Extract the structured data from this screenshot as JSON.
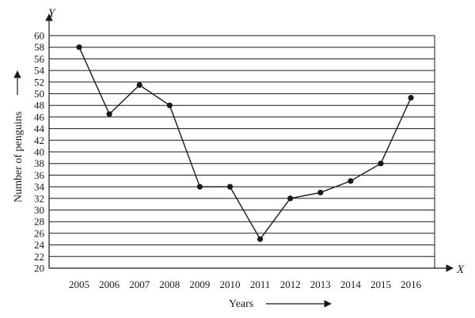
{
  "chart_data": {
    "type": "line",
    "x_axis_name": "X",
    "y_axis_name": "Y",
    "xlabel": "Years",
    "ylabel": "Number of  penguins",
    "categories": [
      "2005",
      "2006",
      "2007",
      "2008",
      "2009",
      "2010",
      "2011",
      "2012",
      "2013",
      "2014",
      "2015",
      "2016"
    ],
    "values": [
      58,
      46.5,
      51.5,
      48,
      34,
      34,
      25,
      32,
      33,
      35,
      38,
      49.3
    ],
    "ylim": [
      20,
      60
    ],
    "yticks": [
      20,
      22,
      24,
      26,
      28,
      30,
      32,
      34,
      36,
      38,
      40,
      42,
      44,
      46,
      48,
      50,
      52,
      54,
      56,
      58,
      60
    ],
    "grid": true,
    "legend": "none"
  }
}
